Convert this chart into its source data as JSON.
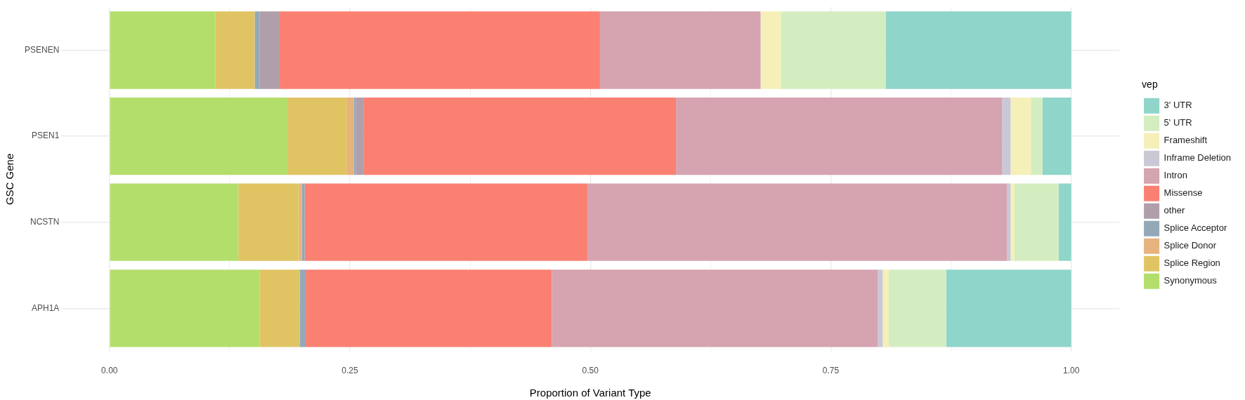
{
  "chart_data": {
    "type": "bar",
    "orientation": "horizontal",
    "stacked": true,
    "categories": [
      "PSENEN",
      "PSEN1",
      "NCSTN",
      "APH1A"
    ],
    "series": [
      {
        "name": "Synonymous",
        "color": "#b4de6c",
        "values": [
          0.11,
          0.185,
          0.134,
          0.156
        ]
      },
      {
        "name": "Splice Region",
        "color": "#e0c464",
        "values": [
          0.041,
          0.062,
          0.063,
          0.042
        ]
      },
      {
        "name": "Splice Donor",
        "color": "#e6b27e",
        "values": [
          0,
          0.007,
          0.003,
          0
        ]
      },
      {
        "name": "Splice Acceptor",
        "color": "#93a9b8",
        "values": [
          0.005,
          0.002,
          0.003,
          0.006
        ]
      },
      {
        "name": "other",
        "color": "#b09eab",
        "values": [
          0.021,
          0.008,
          0,
          0
        ]
      },
      {
        "name": "Missense",
        "color": "#fa8072",
        "values": [
          0.333,
          0.325,
          0.294,
          0.256
        ]
      },
      {
        "name": "Intron",
        "color": "#d6a3b0",
        "values": [
          0.167,
          0.339,
          0.436,
          0.339
        ]
      },
      {
        "name": "Inframe Deletion",
        "color": "#cbc8d5",
        "values": [
          0,
          0.009,
          0.004,
          0.005
        ]
      },
      {
        "name": "Frameshift",
        "color": "#f4f0b8",
        "values": [
          0.021,
          0.021,
          0.004,
          0.006
        ]
      },
      {
        "name": "5' UTR",
        "color": "#d4edc0",
        "values": [
          0.109,
          0.012,
          0.046,
          0.06
        ]
      },
      {
        "name": "3' UTR",
        "color": "#8fd5c9",
        "values": [
          0.193,
          0.03,
          0.013,
          0.13
        ]
      }
    ],
    "xlim": [
      -0.05,
      1.05
    ],
    "xticks": [
      {
        "value": 0,
        "label": "0.00"
      },
      {
        "value": 0.125,
        "label": null
      },
      {
        "value": 0.25,
        "label": "0.25"
      },
      {
        "value": 0.375,
        "label": null
      },
      {
        "value": 0.5,
        "label": "0.50"
      },
      {
        "value": 0.625,
        "label": null
      },
      {
        "value": 0.75,
        "label": "0.75"
      },
      {
        "value": 0.875,
        "label": null
      },
      {
        "value": 1,
        "label": "1.00"
      }
    ],
    "xlabel": "Proportion of Variant Type",
    "ylabel": "GSC Gene",
    "legend_title": "vep",
    "legend": "right",
    "grid": true
  }
}
